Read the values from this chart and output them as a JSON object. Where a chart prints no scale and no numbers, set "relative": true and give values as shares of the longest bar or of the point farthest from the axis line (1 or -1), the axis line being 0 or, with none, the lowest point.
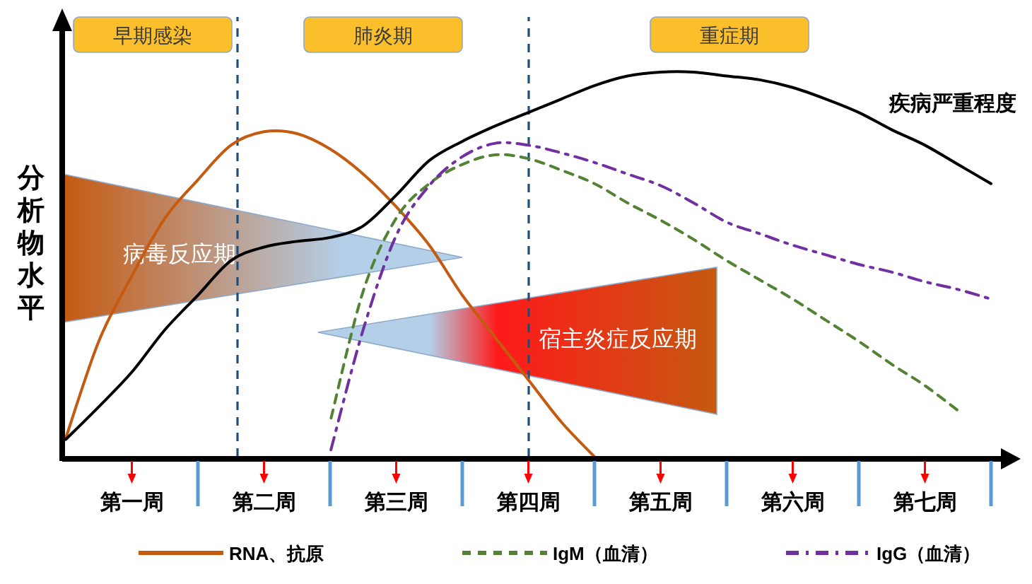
{
  "chart_data": {
    "type": "line",
    "relative": true,
    "ylabel": "分析物水平",
    "categories": [
      null,
      null,
      "第一周",
      null,
      null,
      null,
      "第二周",
      null,
      null,
      null,
      "第三周",
      null,
      null,
      null,
      "第四周",
      null,
      null,
      null,
      "第五周",
      null,
      null,
      null,
      "第六周",
      null,
      null,
      null,
      "第七周",
      null,
      null
    ],
    "series": [
      {
        "name": "RNA、抗原",
        "color": "#c55a11",
        "line_style": "solid",
        "values": [
          0.048,
          0.3,
          0.47,
          0.62,
          0.72,
          0.81,
          0.845,
          0.84,
          0.8,
          0.735,
          0.65,
          0.55,
          0.42,
          0.31,
          0.2,
          0.09,
          0,
          null,
          null,
          null,
          null,
          null,
          null,
          null,
          null,
          null,
          null,
          null,
          null
        ]
      },
      {
        "name": "IgM（血清）",
        "color": "#548235",
        "line_style": "dashed",
        "values": [
          null,
          null,
          null,
          null,
          null,
          null,
          null,
          null,
          0.09,
          0.43,
          0.62,
          0.71,
          0.76,
          0.785,
          0.775,
          0.745,
          0.71,
          0.66,
          0.615,
          0.565,
          0.51,
          0.46,
          0.41,
          0.355,
          0.3,
          0.24,
          0.185,
          0.12,
          null
        ]
      },
      {
        "name": "IgG（血清）",
        "color": "#7030a0",
        "line_style": "dashdot",
        "values": [
          null,
          null,
          null,
          null,
          null,
          null,
          null,
          null,
          0.01,
          0.33,
          0.575,
          0.705,
          0.78,
          0.815,
          0.81,
          0.79,
          0.765,
          0.735,
          0.705,
          0.66,
          0.61,
          0.58,
          0.55,
          0.525,
          0.5,
          0.48,
          0.455,
          0.435,
          0.41
        ]
      },
      {
        "name": "疾病严重程度",
        "color": "#000000",
        "line_style": "solid",
        "values": [
          0.045,
          0.13,
          0.22,
          0.33,
          0.42,
          0.51,
          0.545,
          0.56,
          0.57,
          0.6,
          0.68,
          0.77,
          0.82,
          0.86,
          0.895,
          0.93,
          0.965,
          0.99,
          1.0,
          1.0,
          0.99,
          0.98,
          0.96,
          0.93,
          0.895,
          0.85,
          0.81,
          0.76,
          0.71
        ]
      }
    ],
    "annotations": [
      "早期感染",
      "肺炎期",
      "重症期",
      "病毒反应期",
      "宿主炎症反应期"
    ],
    "legend": "bottom"
  }
}
